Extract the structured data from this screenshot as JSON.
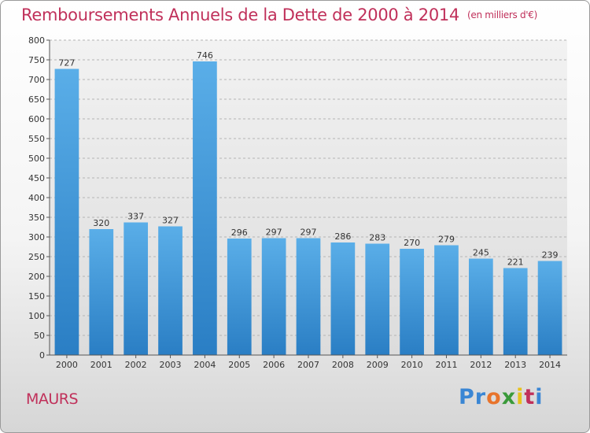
{
  "title": "Remboursements Annuels de la Dette de 2000 à 2014",
  "unit": "(en milliers d'€)",
  "commune": "MAURS",
  "logo": {
    "letters": [
      "P",
      "r",
      "o",
      "x",
      "i",
      "t",
      "i"
    ],
    "colors": [
      "#3a86d4",
      "#3a86d4",
      "#e8742c",
      "#3a9a3a",
      "#e8c21c",
      "#c0305a",
      "#3a86d4"
    ]
  },
  "chart_data": {
    "type": "bar",
    "title": "Remboursements Annuels de la Dette de 2000 à 2014",
    "subtitle": "(en milliers d'€)",
    "categories": [
      "2000",
      "2001",
      "2002",
      "2003",
      "2004",
      "2005",
      "2006",
      "2007",
      "2008",
      "2009",
      "2010",
      "2011",
      "2012",
      "2013",
      "2014"
    ],
    "values": [
      727,
      320,
      337,
      327,
      746,
      296,
      297,
      297,
      286,
      283,
      270,
      279,
      245,
      221,
      239
    ],
    "ylim": [
      0,
      800
    ],
    "yticks": [
      0,
      50,
      100,
      150,
      200,
      250,
      300,
      350,
      400,
      450,
      500,
      550,
      600,
      650,
      700,
      750,
      800
    ],
    "grid": "horizontal-dashed",
    "bar_color_top": "#5aaee8",
    "bar_color_bottom": "#2a7ec4",
    "data_labels": true
  }
}
